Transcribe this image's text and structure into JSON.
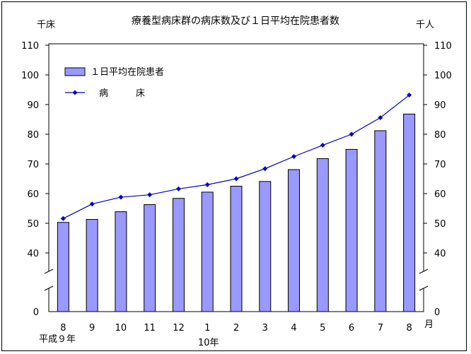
{
  "chart_data": {
    "type": "bar+line",
    "title": "療養型病床群の病床数及び１日平均在院患者数",
    "left_axis_unit": "千床",
    "right_axis_unit": "千人",
    "month_unit": "月",
    "year_labels": [
      "平成９年",
      "10年"
    ],
    "categories": [
      "8",
      "9",
      "10",
      "11",
      "12",
      "1",
      "2",
      "3",
      "4",
      "5",
      "6",
      "7",
      "8"
    ],
    "ylim": [
      0,
      110
    ],
    "axis_break": true,
    "yticks": [
      0,
      40,
      50,
      60,
      70,
      80,
      90,
      100,
      110
    ],
    "grid": false,
    "legend_position": "top-left",
    "colors": {
      "bar_fill": "#9999ff",
      "bar_stroke": "#000000",
      "line": "#0000cc"
    },
    "series": [
      {
        "name": "１日平均在院患者",
        "type": "bar",
        "axis": "right",
        "values": [
          50.3,
          51.3,
          53.9,
          56.3,
          58.4,
          60.5,
          62.5,
          64.1,
          68.1,
          71.8,
          74.9,
          81.2,
          86.8
        ]
      },
      {
        "name": "病　　　床",
        "type": "line",
        "axis": "left",
        "values": [
          51.6,
          56.5,
          58.8,
          59.6,
          61.6,
          63.0,
          65.0,
          68.4,
          72.5,
          76.3,
          80.0,
          85.6,
          93.2
        ]
      }
    ]
  }
}
